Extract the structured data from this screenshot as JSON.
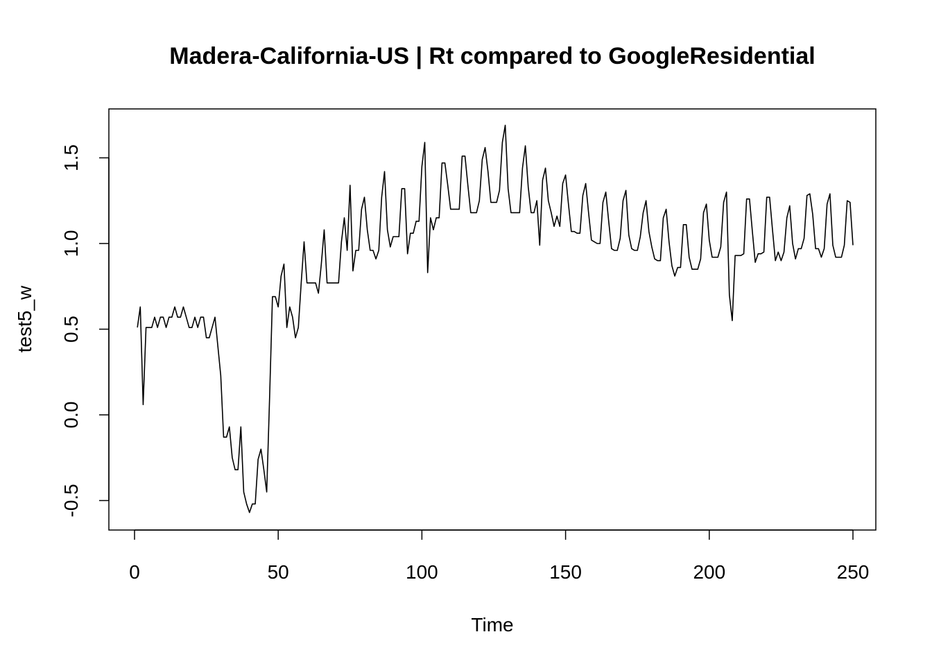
{
  "chart_data": {
    "type": "line",
    "title": "Madera-California-US | Rt compared to GoogleResidential",
    "xlabel": "Time",
    "ylabel": "test5_w",
    "xlim": [
      1,
      248
    ],
    "ylim": [
      -0.6,
      1.7
    ],
    "x_ticks": [
      0,
      50,
      100,
      150,
      200,
      250
    ],
    "x_tick_labels": [
      "0",
      "50",
      "100",
      "150",
      "200",
      "250"
    ],
    "y_ticks": [
      -0.5,
      0.0,
      0.5,
      1.0,
      1.5
    ],
    "y_tick_labels": [
      "-0.5",
      "0.0",
      "0.5",
      "1.0",
      "1.5"
    ],
    "grid": false,
    "legend": "none",
    "line_color": "#000000",
    "series": [
      {
        "x_start": 1,
        "x_step": 1,
        "values": [
          0.51,
          0.63,
          0.06,
          0.51,
          0.51,
          0.51,
          0.57,
          0.51,
          0.57,
          0.57,
          0.51,
          0.57,
          0.57,
          0.63,
          0.57,
          0.57,
          0.63,
          0.57,
          0.51,
          0.51,
          0.57,
          0.51,
          0.57,
          0.57,
          0.45,
          0.45,
          0.51,
          0.57,
          0.4,
          0.23,
          -0.13,
          -0.13,
          -0.07,
          -0.25,
          -0.32,
          -0.32,
          -0.07,
          -0.45,
          -0.52,
          -0.57,
          -0.52,
          -0.52,
          -0.26,
          -0.2,
          -0.32,
          -0.45,
          0.1,
          0.69,
          0.69,
          0.63,
          0.81,
          0.88,
          0.51,
          0.63,
          0.57,
          0.45,
          0.51,
          0.77,
          1.01,
          0.77,
          0.77,
          0.77,
          0.77,
          0.71,
          0.88,
          1.08,
          0.77,
          0.77,
          0.77,
          0.77,
          0.77,
          1.01,
          1.15,
          0.96,
          1.34,
          0.84,
          0.96,
          0.96,
          1.2,
          1.27,
          1.08,
          0.96,
          0.96,
          0.91,
          0.96,
          1.27,
          1.42,
          1.08,
          0.98,
          1.04,
          1.04,
          1.04,
          1.32,
          1.32,
          0.94,
          1.06,
          1.06,
          1.13,
          1.13,
          1.45,
          1.59,
          0.83,
          1.15,
          1.08,
          1.15,
          1.15,
          1.47,
          1.47,
          1.34,
          1.2,
          1.2,
          1.2,
          1.2,
          1.51,
          1.51,
          1.34,
          1.18,
          1.18,
          1.18,
          1.25,
          1.49,
          1.56,
          1.42,
          1.24,
          1.24,
          1.24,
          1.31,
          1.59,
          1.69,
          1.32,
          1.18,
          1.18,
          1.18,
          1.18,
          1.44,
          1.57,
          1.33,
          1.18,
          1.18,
          1.25,
          0.99,
          1.37,
          1.44,
          1.25,
          1.18,
          1.1,
          1.16,
          1.1,
          1.35,
          1.4,
          1.23,
          1.07,
          1.07,
          1.06,
          1.06,
          1.28,
          1.35,
          1.18,
          1.02,
          1.01,
          1.0,
          1.0,
          1.24,
          1.3,
          1.13,
          0.97,
          0.96,
          0.96,
          1.03,
          1.25,
          1.31,
          1.05,
          0.97,
          0.96,
          0.96,
          1.04,
          1.18,
          1.25,
          1.07,
          0.98,
          0.91,
          0.9,
          0.9,
          1.15,
          1.2,
          1.01,
          0.87,
          0.81,
          0.86,
          0.86,
          1.11,
          1.11,
          0.92,
          0.85,
          0.85,
          0.85,
          0.91,
          1.18,
          1.23,
          1.02,
          0.92,
          0.92,
          0.92,
          0.98,
          1.24,
          1.3,
          0.7,
          0.55,
          0.93,
          0.93,
          0.93,
          0.94,
          1.26,
          1.26,
          1.07,
          0.89,
          0.94,
          0.94,
          0.95,
          1.27,
          1.27,
          1.08,
          0.9,
          0.95,
          0.9,
          0.95,
          1.15,
          1.22,
          1.0,
          0.91,
          0.97,
          0.97,
          1.03,
          1.28,
          1.29,
          1.17,
          0.97,
          0.97,
          0.92,
          0.97,
          1.23,
          1.29,
          0.99,
          0.92,
          0.92,
          0.92,
          0.99,
          1.25,
          1.24,
          0.99
        ]
      }
    ]
  }
}
